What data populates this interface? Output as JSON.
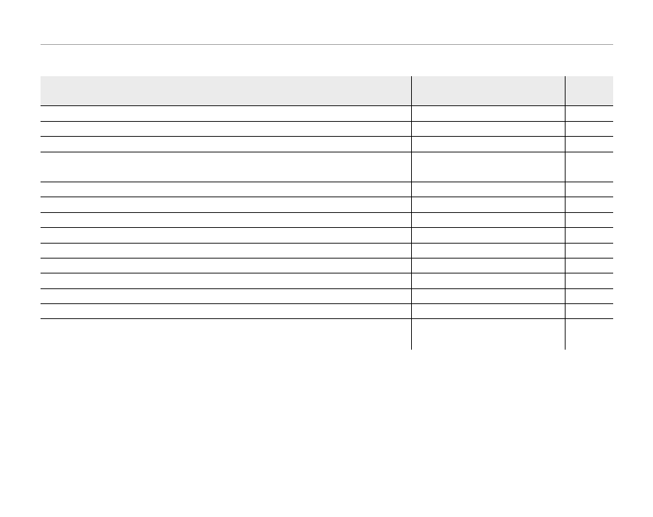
{
  "table": {
    "headers": [
      "",
      "",
      ""
    ],
    "rows": [
      {
        "tall": false,
        "cells": [
          "",
          "",
          ""
        ]
      },
      {
        "tall": false,
        "cells": [
          "",
          "",
          ""
        ]
      },
      {
        "tall": false,
        "cells": [
          "",
          "",
          ""
        ]
      },
      {
        "tall": true,
        "cells": [
          "",
          "",
          ""
        ]
      },
      {
        "tall": false,
        "cells": [
          "",
          "",
          ""
        ]
      },
      {
        "tall": false,
        "cells": [
          "",
          "",
          ""
        ]
      },
      {
        "tall": false,
        "cells": [
          "",
          "",
          ""
        ]
      },
      {
        "tall": false,
        "cells": [
          "",
          "",
          ""
        ]
      },
      {
        "tall": false,
        "cells": [
          "",
          "",
          ""
        ]
      },
      {
        "tall": false,
        "cells": [
          "",
          "",
          ""
        ]
      },
      {
        "tall": false,
        "cells": [
          "",
          "",
          ""
        ]
      },
      {
        "tall": false,
        "cells": [
          "",
          "",
          ""
        ]
      },
      {
        "tall": false,
        "cells": [
          "",
          "",
          ""
        ]
      },
      {
        "tall": true,
        "cells": [
          "",
          "",
          ""
        ]
      }
    ]
  }
}
